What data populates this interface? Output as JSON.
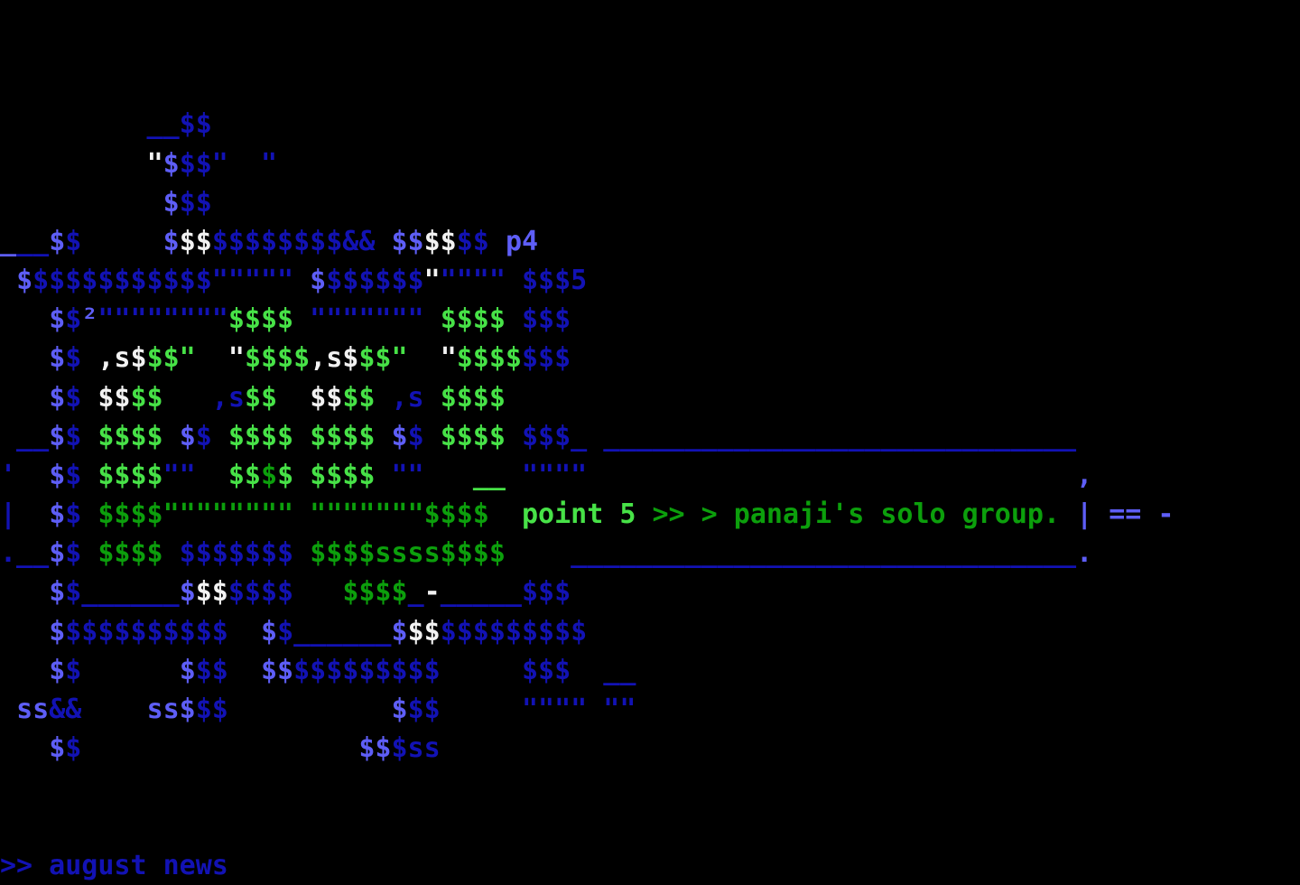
{
  "palette": {
    "B": "#1212b4",
    "L": "#5e5ef7",
    "W": "#f2f2f2",
    "G": "#47e247",
    "D": "#0c9f0c"
  },
  "headline": {
    "point_label": "point 5",
    "group_label": " >> > panaji's solo group.",
    "right_marks": "| == -"
  },
  "status": {
    "prompt": ">> august news"
  },
  "art": {
    "rows": [
      [],
      [],
      [
        [
          "B",
          "         __$$"
        ]
      ],
      [
        [
          "B",
          "         "
        ],
        [
          "W",
          "\""
        ],
        [
          "L",
          "$"
        ],
        [
          "B",
          "$$\"  \""
        ]
      ],
      [
        [
          "B",
          "          "
        ],
        [
          "L",
          "$"
        ],
        [
          "B",
          "$$"
        ]
      ],
      [
        [
          "L",
          "_"
        ],
        [
          "B",
          "__"
        ],
        [
          "L",
          "$"
        ],
        [
          "B",
          "$     "
        ],
        [
          "L",
          "$"
        ],
        [
          "W",
          "$$"
        ],
        [
          "B",
          "$$$$$$$$&& "
        ],
        [
          "L",
          "$$"
        ],
        [
          "W",
          "$$"
        ],
        [
          "B",
          "$$ "
        ],
        [
          "L",
          "p4"
        ]
      ],
      [
        [
          "B",
          " "
        ],
        [
          "L",
          "$"
        ],
        [
          "B",
          "$$$$$$$$$$$\"\"\"\"\" "
        ],
        [
          "L",
          "$"
        ],
        [
          "B",
          "$$$$$$"
        ],
        [
          "W",
          "\""
        ],
        [
          "B",
          "\"\"\"\" $$$5"
        ]
      ],
      [
        [
          "B",
          "   "
        ],
        [
          "L",
          "$"
        ],
        [
          "B",
          "$"
        ],
        [
          "L",
          "²"
        ],
        [
          "B",
          "\"\"\"\"\"\"\"\""
        ],
        [
          "G",
          "$$$$"
        ],
        [
          "B",
          " \"\"\"\"\"\"\" "
        ],
        [
          "G",
          "$$$$"
        ],
        [
          "B",
          " $$$"
        ]
      ],
      [
        [
          "B",
          "   "
        ],
        [
          "L",
          "$"
        ],
        [
          "B",
          "$ "
        ],
        [
          "W",
          ",s$"
        ],
        [
          "G",
          "$$\""
        ],
        [
          "B",
          "  "
        ],
        [
          "W",
          "\""
        ],
        [
          "G",
          "$$$$"
        ],
        [
          "W",
          ",s$"
        ],
        [
          "G",
          "$$\""
        ],
        [
          "B",
          "  "
        ],
        [
          "W",
          "\""
        ],
        [
          "G",
          "$$$$"
        ],
        [
          "B",
          "$$$"
        ]
      ],
      [
        [
          "B",
          "   "
        ],
        [
          "L",
          "$"
        ],
        [
          "B",
          "$ "
        ],
        [
          "W",
          "$$"
        ],
        [
          "G",
          "$$"
        ],
        [
          "B",
          "   ,s"
        ],
        [
          "G",
          "$$"
        ],
        [
          "B",
          "  "
        ],
        [
          "W",
          "$$"
        ],
        [
          "G",
          "$$"
        ],
        [
          "B",
          " ,s "
        ],
        [
          "G",
          "$$$$"
        ]
      ],
      [
        [
          "B",
          " __"
        ],
        [
          "L",
          "$"
        ],
        [
          "B",
          "$ "
        ],
        [
          "G",
          "$$$$"
        ],
        [
          "B",
          " "
        ],
        [
          "L",
          "$"
        ],
        [
          "B",
          "$ "
        ],
        [
          "G",
          "$$$$"
        ],
        [
          "B",
          " "
        ],
        [
          "G",
          "$$$$"
        ],
        [
          "B",
          " "
        ],
        [
          "L",
          "$"
        ],
        [
          "B",
          "$ "
        ],
        [
          "G",
          "$$$$"
        ],
        [
          "B",
          " $$$_ _____________________________"
        ]
      ],
      [
        [
          "B",
          "'  "
        ],
        [
          "L",
          "$"
        ],
        [
          "B",
          "$ "
        ],
        [
          "G",
          "$$$$"
        ],
        [
          "B",
          "\"\"  "
        ],
        [
          "G",
          "$$"
        ],
        [
          "D",
          "$"
        ],
        [
          "G",
          "$"
        ],
        [
          "B",
          " "
        ],
        [
          "G",
          "$$$$"
        ],
        [
          "B",
          " \"\"   "
        ],
        [
          "G",
          "__"
        ],
        [
          "B",
          " \"\"\"\""
        ],
        [
          "B",
          "                              "
        ],
        [
          "L",
          ","
        ]
      ],
      [
        [
          "B",
          "|  "
        ],
        [
          "L",
          "$"
        ],
        [
          "B",
          "$ "
        ],
        [
          "D",
          "$$$$\"\"\"\"\"\"\"\" \"\"\"\"\"\"\"$$$$"
        ],
        [
          "B",
          "  "
        ],
        [
          "G",
          "point 5",
          "headline-point"
        ],
        [
          "D",
          " >> > panaji's solo group.",
          "headline-group"
        ],
        [
          "B",
          " "
        ],
        [
          "L",
          "| == -",
          "headline-right-marks"
        ]
      ],
      [
        [
          "B",
          ".__"
        ],
        [
          "L",
          "$"
        ],
        [
          "B",
          "$ "
        ],
        [
          "D",
          "$$$$"
        ],
        [
          "B",
          " $$$$$$$ "
        ],
        [
          "D",
          "$$$$ssss$$$$"
        ],
        [
          "B",
          "    _______________________________"
        ],
        [
          "L",
          "."
        ]
      ],
      [
        [
          "B",
          "   "
        ],
        [
          "L",
          "$"
        ],
        [
          "B",
          "$______"
        ],
        [
          "L",
          "$"
        ],
        [
          "W",
          "$$"
        ],
        [
          "B",
          "$$$$   "
        ],
        [
          "D",
          "$$$$"
        ],
        [
          "B",
          "_"
        ],
        [
          "W",
          "-"
        ],
        [
          "B",
          "_____$$$"
        ]
      ],
      [
        [
          "B",
          "   "
        ],
        [
          "L",
          "$"
        ],
        [
          "B",
          "$$$$$$$$$$  "
        ],
        [
          "L",
          "$"
        ],
        [
          "B",
          "$______"
        ],
        [
          "L",
          "$"
        ],
        [
          "W",
          "$$"
        ],
        [
          "B",
          "$$$$$$$$$"
        ]
      ],
      [
        [
          "B",
          "   "
        ],
        [
          "L",
          "$"
        ],
        [
          "B",
          "$      "
        ],
        [
          "L",
          "$"
        ],
        [
          "B",
          "$$  "
        ],
        [
          "L",
          "$$"
        ],
        [
          "B",
          "$$$$$$$$$     $$$  __"
        ]
      ],
      [
        [
          "B",
          " "
        ],
        [
          "L",
          "ss"
        ],
        [
          "B",
          "&&    "
        ],
        [
          "L",
          "ss$"
        ],
        [
          "B",
          "$$          "
        ],
        [
          "L",
          "$"
        ],
        [
          "B",
          "$$     \"\"\"\" \"\""
        ]
      ],
      [
        [
          "B",
          "   "
        ],
        [
          "L",
          "$"
        ],
        [
          "B",
          "$                 "
        ],
        [
          "L",
          "$$"
        ],
        [
          "B",
          "$ss"
        ]
      ],
      [],
      [],
      [
        [
          "B",
          ">> august news",
          "status-text"
        ]
      ]
    ]
  }
}
